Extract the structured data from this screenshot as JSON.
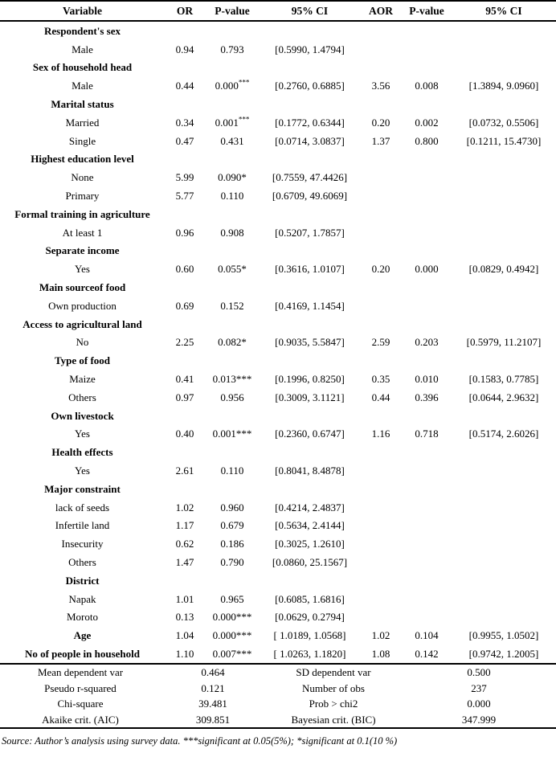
{
  "table": {
    "headers": [
      "Variable",
      "OR",
      "P-value",
      "95% CI",
      "AOR",
      "P-value",
      "95% CI"
    ],
    "rows": [
      {
        "type": "group",
        "label": "Respondent's sex"
      },
      {
        "type": "item",
        "label": "Male",
        "or": "0.94",
        "p1": "0.793",
        "ci1": "[0.5990, 1.4794]",
        "aor": "",
        "p2": "",
        "ci2": ""
      },
      {
        "type": "group",
        "label": "Sex of household head"
      },
      {
        "type": "item",
        "label": "Male",
        "or": "0.44",
        "p1": "0.000***",
        "p1_sup": true,
        "ci1": "[0.2760, 0.6885]",
        "aor": "3.56",
        "p2": "0.008",
        "ci2": "[1.3894, 9.0960]"
      },
      {
        "type": "group",
        "label": "Marital status"
      },
      {
        "type": "item",
        "label": "Married",
        "or": "0.34",
        "p1": "0.001***",
        "p1_sup": true,
        "ci1": "[0.1772, 0.6344]",
        "aor": "0.20",
        "p2": "0.002",
        "ci2": "[0.0732, 0.5506]"
      },
      {
        "type": "item",
        "label": "Single",
        "or": "0.47",
        "p1": "0.431",
        "ci1": "[0.0714, 3.0837]",
        "aor": "1.37",
        "p2": "0.800",
        "ci2": "[0.1211, 15.4730]"
      },
      {
        "type": "group",
        "label": "Highest education level"
      },
      {
        "type": "item",
        "label": "None",
        "or": "5.99",
        "p1": "0.090*",
        "ci1": "[0.7559, 47.4426]",
        "aor": "",
        "p2": "",
        "ci2": ""
      },
      {
        "type": "item",
        "label": "Primary",
        "or": "5.77",
        "p1": "0.110",
        "ci1": "[0.6709, 49.6069]",
        "aor": "",
        "p2": "",
        "ci2": ""
      },
      {
        "type": "group",
        "label": "Formal training in agriculture"
      },
      {
        "type": "item",
        "label": "At least 1",
        "or": "0.96",
        "p1": "0.908",
        "ci1": "[0.5207, 1.7857]",
        "aor": "",
        "p2": "",
        "ci2": ""
      },
      {
        "type": "group",
        "label": "Separate income"
      },
      {
        "type": "item",
        "label": "Yes",
        "or": "0.60",
        "p1": "0.055*",
        "ci1": "[0.3616, 1.0107]",
        "aor": "0.20",
        "p2": "0.000",
        "ci2": "[0.0829, 0.4942]"
      },
      {
        "type": "group",
        "label": "Main sourceof food"
      },
      {
        "type": "item",
        "label": "Own production",
        "or": "0.69",
        "p1": "0.152",
        "ci1": "[0.4169, 1.1454]",
        "aor": "",
        "p2": "",
        "ci2": ""
      },
      {
        "type": "group",
        "label": "Access to agricultural land"
      },
      {
        "type": "item",
        "label": "No",
        "or": "2.25",
        "p1": "0.082*",
        "ci1": "[0.9035, 5.5847]",
        "aor": "2.59",
        "p2": "0.203",
        "ci2": "[0.5979, 11.2107]"
      },
      {
        "type": "group",
        "label": "Type of food"
      },
      {
        "type": "item",
        "label": "Maize",
        "or": "0.41",
        "p1": "0.013***",
        "ci1": "[0.1996, 0.8250]",
        "aor": "0.35",
        "p2": "0.010",
        "ci2": "[0.1583, 0.7785]"
      },
      {
        "type": "item",
        "label": "Others",
        "or": "0.97",
        "p1": "0.956",
        "ci1": "[0.3009, 3.1121]",
        "aor": "0.44",
        "p2": "0.396",
        "ci2": "[0.0644, 2.9632]"
      },
      {
        "type": "group",
        "label": "Own livestock"
      },
      {
        "type": "item",
        "label": "Yes",
        "or": "0.40",
        "p1": "0.001***",
        "ci1": "[0.2360, 0.6747]",
        "aor": "1.16",
        "p2": "0.718",
        "ci2": "[0.5174, 2.6026]"
      },
      {
        "type": "group",
        "label": "Health effects"
      },
      {
        "type": "item",
        "label": "Yes",
        "or": "2.61",
        "p1": "0.110",
        "ci1": "[0.8041, 8.4878]",
        "aor": "",
        "p2": "",
        "ci2": ""
      },
      {
        "type": "group",
        "label": "Major constraint"
      },
      {
        "type": "item",
        "label": "lack of seeds",
        "or": "1.02",
        "p1": "0.960",
        "ci1": "[0.4214, 2.4837]",
        "aor": "",
        "p2": "",
        "ci2": ""
      },
      {
        "type": "item",
        "label": "Infertile land",
        "or": "1.17",
        "p1": "0.679",
        "ci1": "[0.5634, 2.4144]",
        "aor": "",
        "p2": "",
        "ci2": ""
      },
      {
        "type": "item",
        "label": "Insecurity",
        "or": "0.62",
        "p1": "0.186",
        "ci1": "[0.3025, 1.2610]",
        "aor": "",
        "p2": "",
        "ci2": ""
      },
      {
        "type": "item",
        "label": "Others",
        "or": "1.47",
        "p1": "0.790",
        "ci1": "[0.0860, 25.1567]",
        "aor": "",
        "p2": "",
        "ci2": ""
      },
      {
        "type": "group",
        "label": "District"
      },
      {
        "type": "item",
        "label": "Napak",
        "or": "1.01",
        "p1": "0.965",
        "ci1": "[0.6085, 1.6816]",
        "aor": "",
        "p2": "",
        "ci2": ""
      },
      {
        "type": "item",
        "label": "Moroto",
        "or": "0.13",
        "p1": "0.000***",
        "ci1": "[0.0629, 0.2794]",
        "aor": "",
        "p2": "",
        "ci2": ""
      },
      {
        "type": "item",
        "label": "Age",
        "bold": true,
        "or": "1.04",
        "p1": "0.000***",
        "ci1": "[ 1.0189, 1.0568]",
        "aor": "1.02",
        "p2": "0.104",
        "ci2": "[0.9955, 1.0502]"
      },
      {
        "type": "item",
        "label": "No of people in household",
        "bold": true,
        "or": "1.10",
        "p1": "0.007***",
        "ci1": "[ 1.0263, 1.1820]",
        "aor": "1.08",
        "p2": "0.142",
        "ci2": "[0.9742, 1.2005]"
      }
    ]
  },
  "summary": {
    "rows": [
      {
        "label1": "Mean dependent var",
        "value1": "0.464",
        "label2": "SD dependent var",
        "value2": "0.500"
      },
      {
        "label1": "Pseudo r-squared",
        "value1": "0.121",
        "label2": "Number of obs",
        "value2": "237"
      },
      {
        "label1": "Chi-square",
        "value1": "39.481",
        "label2": "Prob > chi2",
        "value2": "0.000"
      },
      {
        "label1": "Akaike crit. (AIC)",
        "value1": "309.851",
        "label2": "Bayesian crit. (BIC)",
        "value2": "347.999"
      }
    ]
  },
  "footnote": "Source: Author’s analysis using survey data. ***significant at 0.05(5%); *significant at 0.1(10 %)"
}
